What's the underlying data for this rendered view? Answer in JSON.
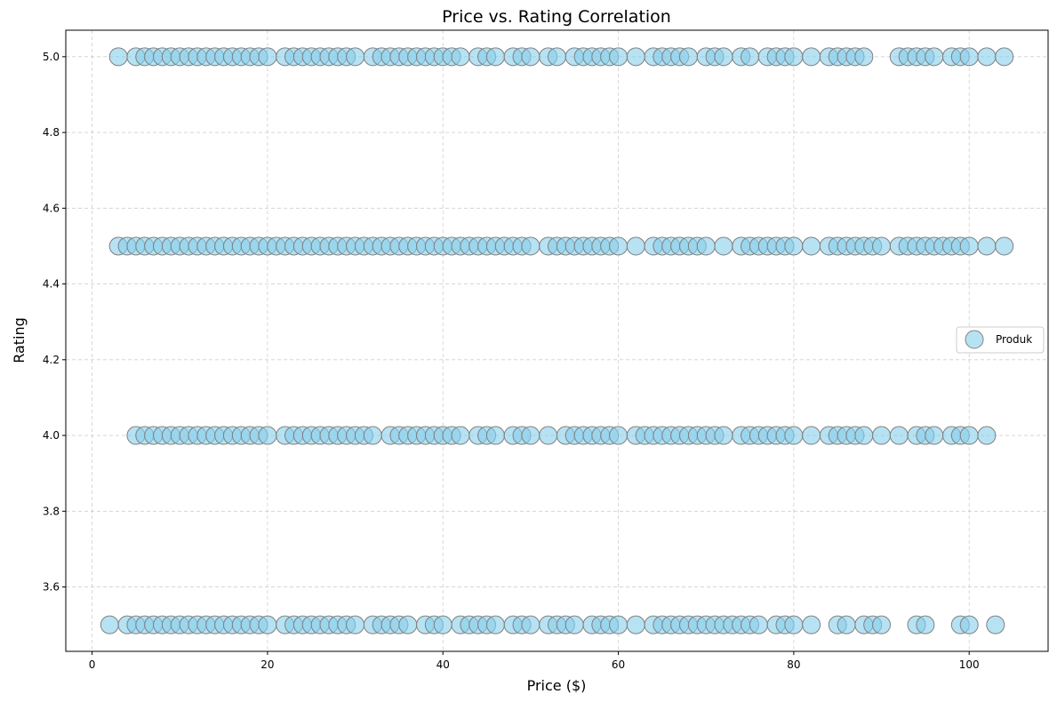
{
  "chart_data": {
    "type": "scatter",
    "title": "Price vs. Rating Correlation",
    "xlabel": "Price ($)",
    "ylabel": "Rating",
    "xlim": [
      -3,
      109
    ],
    "ylim": [
      3.43,
      5.07
    ],
    "xticks": [
      0,
      20,
      40,
      60,
      80,
      100
    ],
    "yticks": [
      3.6,
      3.8,
      4.0,
      4.2,
      4.4,
      4.6,
      4.8,
      5.0
    ],
    "ytick_labels": [
      "3.6",
      "3.8",
      "4.0",
      "4.2",
      "4.4",
      "4.6",
      "4.8",
      "5.0"
    ],
    "grid": true,
    "legend_position": "center-right",
    "marker_color": "#87ceeb",
    "marker_edge_color": "#808080",
    "series": [
      {
        "name": "Produk",
        "rows": [
          {
            "rating": 5.0,
            "prices": [
              3,
              5,
              6,
              7,
              8,
              9,
              10,
              11,
              12,
              13,
              14,
              15,
              16,
              17,
              18,
              19,
              20,
              22,
              23,
              24,
              25,
              26,
              27,
              28,
              29,
              30,
              32,
              33,
              34,
              35,
              36,
              37,
              38,
              39,
              40,
              41,
              42,
              44,
              45,
              46,
              48,
              49,
              50,
              52,
              53,
              55,
              56,
              57,
              58,
              59,
              60,
              62,
              64,
              65,
              66,
              67,
              68,
              70,
              71,
              72,
              74,
              75,
              77,
              78,
              79,
              80,
              82,
              84,
              85,
              86,
              87,
              88,
              92,
              93,
              94,
              95,
              96,
              98,
              99,
              100,
              102,
              104
            ]
          },
          {
            "rating": 4.5,
            "prices": [
              3,
              4,
              5,
              6,
              7,
              8,
              9,
              10,
              11,
              12,
              13,
              14,
              15,
              16,
              17,
              18,
              19,
              20,
              21,
              22,
              23,
              24,
              25,
              26,
              27,
              28,
              29,
              30,
              31,
              32,
              33,
              34,
              35,
              36,
              37,
              38,
              39,
              40,
              41,
              42,
              43,
              44,
              45,
              46,
              47,
              48,
              49,
              50,
              52,
              53,
              54,
              55,
              56,
              57,
              58,
              59,
              60,
              62,
              64,
              65,
              66,
              67,
              68,
              69,
              70,
              72,
              74,
              75,
              76,
              77,
              78,
              79,
              80,
              82,
              84,
              85,
              86,
              87,
              88,
              89,
              90,
              92,
              93,
              94,
              95,
              96,
              97,
              98,
              99,
              100,
              102,
              104
            ]
          },
          {
            "rating": 4.0,
            "prices": [
              5,
              6,
              7,
              8,
              9,
              10,
              11,
              12,
              13,
              14,
              15,
              16,
              17,
              18,
              19,
              20,
              22,
              23,
              24,
              25,
              26,
              27,
              28,
              29,
              30,
              31,
              32,
              34,
              35,
              36,
              37,
              38,
              39,
              40,
              41,
              42,
              44,
              45,
              46,
              48,
              49,
              50,
              52,
              54,
              55,
              56,
              57,
              58,
              59,
              60,
              62,
              63,
              64,
              65,
              66,
              67,
              68,
              69,
              70,
              71,
              72,
              74,
              75,
              76,
              77,
              78,
              79,
              80,
              82,
              84,
              85,
              86,
              87,
              88,
              90,
              92,
              94,
              95,
              96,
              98,
              99,
              100,
              102
            ]
          },
          {
            "rating": 3.5,
            "prices": [
              2,
              4,
              5,
              6,
              7,
              8,
              9,
              10,
              11,
              12,
              13,
              14,
              15,
              16,
              17,
              18,
              19,
              20,
              22,
              23,
              24,
              25,
              26,
              27,
              28,
              29,
              30,
              32,
              33,
              34,
              35,
              36,
              38,
              39,
              40,
              42,
              43,
              44,
              45,
              46,
              48,
              49,
              50,
              52,
              53,
              54,
              55,
              57,
              58,
              59,
              60,
              62,
              64,
              65,
              66,
              67,
              68,
              69,
              70,
              71,
              72,
              73,
              74,
              75,
              76,
              78,
              79,
              80,
              82,
              85,
              86,
              88,
              89,
              90,
              94,
              95,
              99,
              100,
              103
            ]
          }
        ]
      }
    ]
  }
}
